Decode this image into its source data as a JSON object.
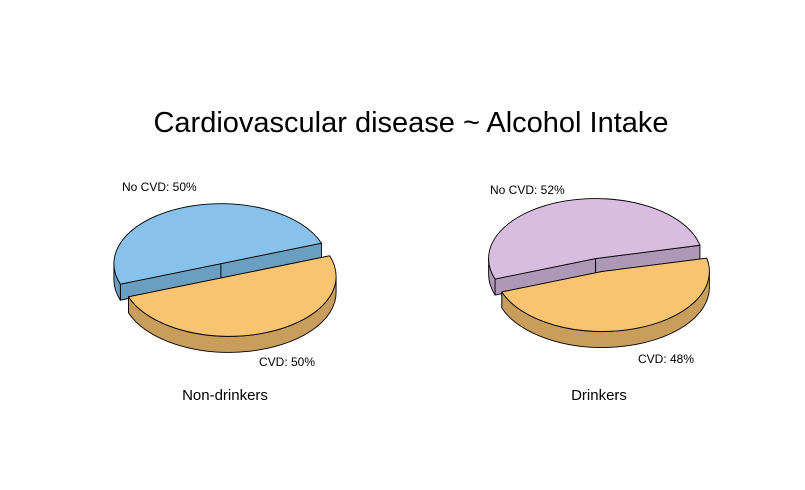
{
  "title": "Cardiovascular disease ~ Alcohol Intake",
  "chart_data": [
    {
      "type": "pie",
      "caption": "Non-drinkers",
      "slices": [
        {
          "label": "No CVD: 50%",
          "value": 50,
          "color": "#88C2EA",
          "side_color": "#6B9FC2"
        },
        {
          "label": "CVD: 50%",
          "value": 50,
          "color": "#F8C472",
          "side_color": "#C99D5C"
        }
      ]
    },
    {
      "type": "pie",
      "caption": "Drinkers",
      "slices": [
        {
          "label": "No CVD: 52%",
          "value": 52,
          "color": "#D8BDE1",
          "side_color": "#AE98B7"
        },
        {
          "label": "CVD: 48%",
          "value": 48,
          "color": "#F8C472",
          "side_color": "#C99D5C"
        }
      ]
    }
  ]
}
